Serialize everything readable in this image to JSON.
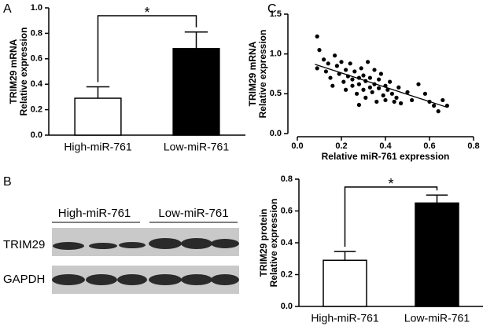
{
  "panel_labels": [
    "A",
    "B",
    "C"
  ],
  "blot": {
    "group_labels": [
      "High-miR-761",
      "Low-miR-761"
    ],
    "row_labels": [
      "TRIM29",
      "GAPDH"
    ]
  },
  "chart_data": [
    {
      "type": "bar",
      "ylabel": [
        "TRIM29 mRNA",
        "Relative expression"
      ],
      "categories": [
        "High-miR-761",
        "Low-miR-761"
      ],
      "values": [
        0.29,
        0.68
      ],
      "errors": [
        0.09,
        0.13
      ],
      "colors": [
        "#ffffff",
        "#000000"
      ],
      "ylim": [
        0,
        1.0
      ],
      "yticks": [
        {
          "value": 0,
          "label": "0.0"
        },
        {
          "value": 0.2,
          "label": "0.2"
        },
        {
          "value": 0.4,
          "label": "0.4"
        },
        {
          "value": 0.6,
          "label": "0.6"
        },
        {
          "value": 0.8,
          "label": "0.8"
        },
        {
          "value": 1.0,
          "label": "1.0"
        }
      ],
      "annotation": "*"
    },
    {
      "type": "scatter",
      "xlabel": "Relative miR-761 expression",
      "ylabel": [
        "TRIM29 mRNA",
        "Relative expression"
      ],
      "x": [
        0.09,
        0.1,
        0.09,
        0.12,
        0.13,
        0.14,
        0.15,
        0.17,
        0.18,
        0.19,
        0.2,
        0.21,
        0.22,
        0.22,
        0.23,
        0.24,
        0.25,
        0.25,
        0.26,
        0.27,
        0.28,
        0.28,
        0.29,
        0.3,
        0.3,
        0.31,
        0.31,
        0.32,
        0.33,
        0.33,
        0.34,
        0.35,
        0.35,
        0.36,
        0.37,
        0.37,
        0.38,
        0.39,
        0.4,
        0.4,
        0.41,
        0.42,
        0.43,
        0.45,
        0.46,
        0.47,
        0.5,
        0.52,
        0.55,
        0.58,
        0.6,
        0.62,
        0.64,
        0.66,
        0.68,
        0.28,
        0.44,
        0.16
      ],
      "y": [
        1.22,
        1.05,
        0.82,
        0.93,
        0.78,
        0.88,
        0.7,
        0.98,
        0.85,
        0.75,
        0.9,
        0.65,
        0.8,
        0.55,
        0.72,
        0.88,
        0.68,
        0.6,
        0.78,
        0.5,
        0.7,
        0.62,
        0.82,
        0.55,
        0.73,
        0.45,
        0.66,
        0.9,
        0.58,
        0.7,
        0.52,
        0.8,
        0.62,
        0.4,
        0.57,
        0.68,
        0.75,
        0.48,
        0.6,
        0.42,
        0.55,
        0.65,
        0.5,
        0.45,
        0.58,
        0.38,
        0.52,
        0.42,
        0.62,
        0.5,
        0.4,
        0.35,
        0.28,
        0.42,
        0.35,
        0.36,
        0.4,
        0.6
      ],
      "fit": {
        "x": [
          0.08,
          0.68
        ],
        "y": [
          0.87,
          0.33
        ]
      },
      "xlim": [
        0,
        0.8
      ],
      "xticks": [
        {
          "value": 0,
          "label": "0.0"
        },
        0.2,
        0.4,
        0.6,
        0.8
      ],
      "ylim": [
        0,
        1.5
      ],
      "yticks": [
        {
          "value": 0,
          "label": "0.0"
        },
        0.5,
        {
          "value": 1.0,
          "label": "1.0"
        },
        1.5
      ]
    },
    {
      "type": "bar",
      "ylabel": [
        "TRIM29 protein",
        "Relative expression"
      ],
      "categories": [
        "High-miR-761",
        "Low-miR-761"
      ],
      "values": [
        0.29,
        0.65
      ],
      "errors": [
        0.055,
        0.05
      ],
      "colors": [
        "#ffffff",
        "#000000"
      ],
      "ylim": [
        0,
        0.8
      ],
      "yticks": [
        {
          "value": 0,
          "label": "0.0"
        },
        {
          "value": 0.2,
          "label": "0.2"
        },
        {
          "value": 0.4,
          "label": "0.4"
        },
        {
          "value": 0.6,
          "label": "0.6"
        },
        {
          "value": 0.8,
          "label": "0.8"
        }
      ],
      "annotation": "*"
    }
  ]
}
